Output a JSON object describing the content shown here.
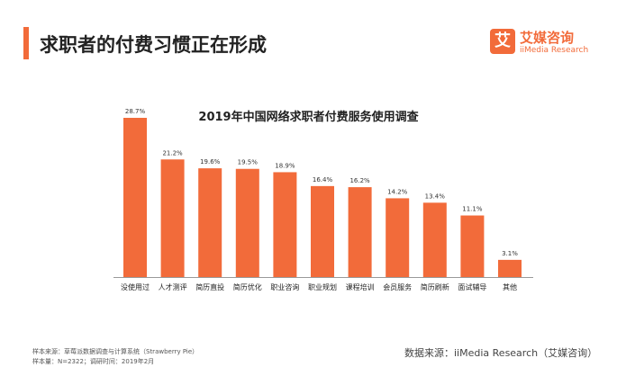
{
  "header": {
    "title": "求职者的付费习惯正在形成",
    "accent_color": "#f26b3a"
  },
  "brand": {
    "mark": "艾",
    "name_cn": "艾媒咨询",
    "name_en": "iiMedia Research"
  },
  "chart_data": {
    "type": "bar",
    "title": "2019年中国网络求职者付费服务使用调查",
    "categories": [
      "没使用过",
      "人才测评",
      "简历直投",
      "简历优化",
      "职业咨询",
      "职业规划",
      "课程培训",
      "会员服务",
      "简历刷新",
      "面试辅导",
      "其他"
    ],
    "values": [
      28.7,
      21.2,
      19.6,
      19.5,
      18.9,
      16.4,
      16.2,
      14.2,
      13.4,
      11.1,
      3.1
    ],
    "value_labels": [
      "28.7%",
      "21.2%",
      "19.6%",
      "19.5%",
      "18.9%",
      "16.4%",
      "16.2%",
      "14.2%",
      "13.4%",
      "11.1%",
      "3.1%"
    ],
    "bar_color": "#f26b3a",
    "ylim": [
      0,
      30
    ],
    "grid": false,
    "legend": "none"
  },
  "footer": {
    "source_note": "样本来源：草莓派数据调查与计算系统（Strawberry Pie）",
    "sample_note": "样本量：N=2322；调研时间：2019年2月",
    "data_source": "数据来源：iiMedia Research（艾媒咨询）"
  }
}
